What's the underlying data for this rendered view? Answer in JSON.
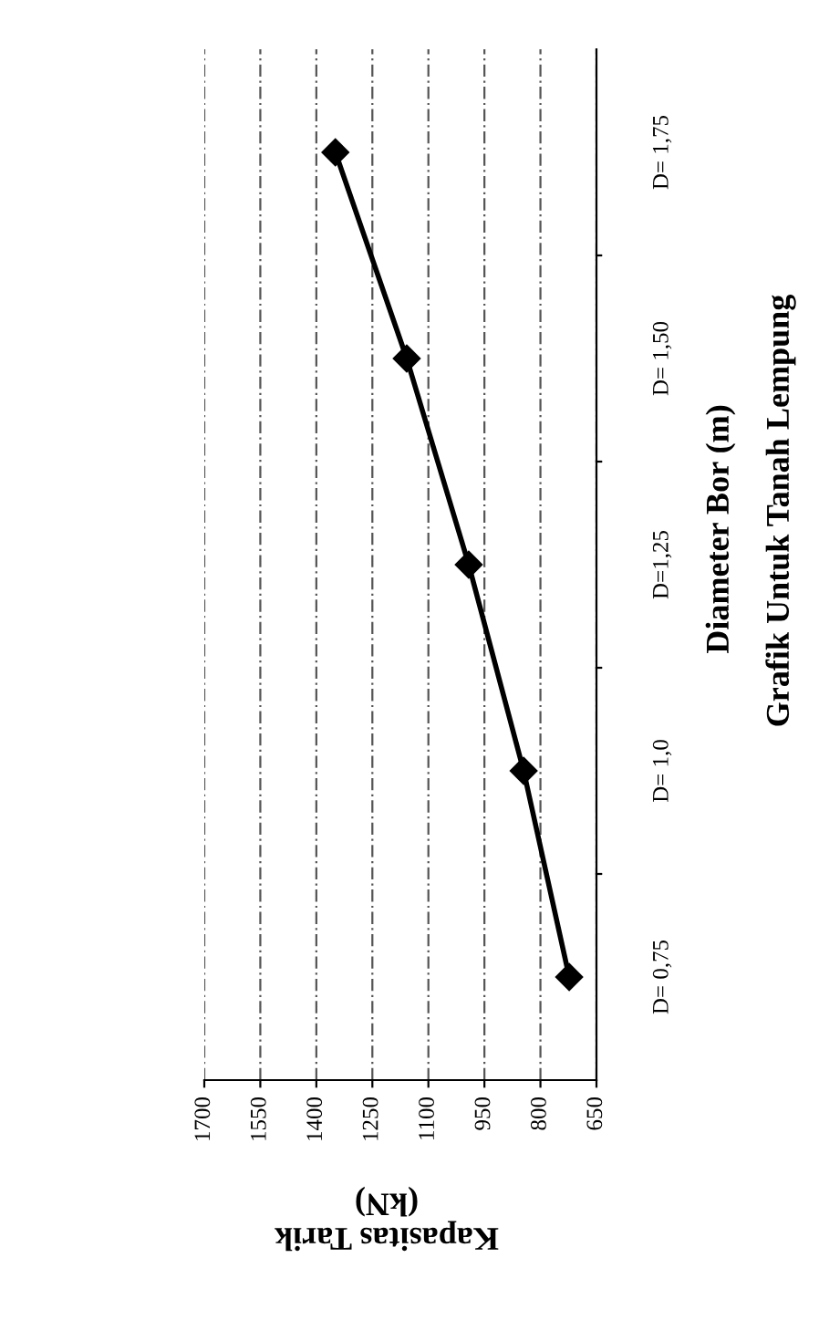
{
  "chart_data": {
    "type": "line",
    "orientation": "horizontal",
    "title": "Grafik Untuk Tanah Lempung",
    "xlabel": "Kapasitas Tarik\n(kN)",
    "ylabel": "Diameter Bor (m)",
    "categories": [
      "D= 1,75",
      "D= 1,50",
      "D=1,25",
      "D= 1,0",
      "D= 0,75"
    ],
    "series": [
      {
        "color": "#000000",
        "values": [
          1349,
          1158,
          992,
          845,
          723
        ]
      }
    ],
    "xlim": [
      1700,
      650
    ],
    "xticks": [
      650,
      800,
      950,
      1100,
      1250,
      1400,
      1550,
      1700
    ],
    "grid": "x",
    "marker": "diamond",
    "line_style": "solid"
  }
}
